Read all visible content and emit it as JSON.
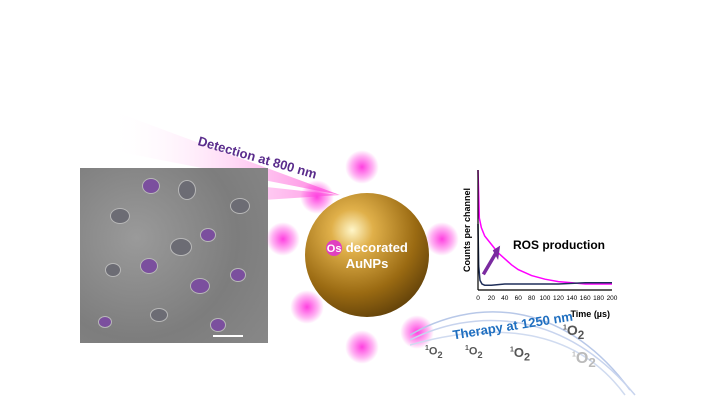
{
  "labels": {
    "detection": "Detection at 800 nm",
    "therapy": "Therapy at 1250 nm",
    "sphere_os": "Os",
    "sphere_rest1": "decorated",
    "sphere_rest2": "AuNPs",
    "ros": "ROS production",
    "singlet_oxygen": "O",
    "singlet_oxygen_sup": "1",
    "singlet_oxygen_sub": "2"
  },
  "colors": {
    "magenta": "#ff00ff",
    "navy": "#1f2f5a",
    "gold": "#c8901e",
    "therapy": "#1f6fc0",
    "detection": "#5a2c8c"
  },
  "chart_data": {
    "type": "line",
    "xlabel": "Time (µs)",
    "ylabel": "Counts per channel",
    "xlim": [
      0,
      200
    ],
    "xticks": [
      "0",
      "20",
      "40",
      "60",
      "80",
      "100",
      "120",
      "140",
      "160",
      "180",
      "200"
    ],
    "ylim": [
      0,
      1
    ],
    "series": [
      {
        "color": "#ff00ff",
        "x": [
          0,
          2,
          5,
          10,
          20,
          30,
          40,
          50,
          60,
          80,
          100,
          120,
          140,
          160,
          180,
          200
        ],
        "values": [
          1.0,
          0.6,
          0.52,
          0.45,
          0.38,
          0.31,
          0.26,
          0.21,
          0.17,
          0.12,
          0.09,
          0.07,
          0.06,
          0.05,
          0.05,
          0.05
        ]
      },
      {
        "color": "#1f2f5a",
        "x": [
          0,
          1,
          3,
          6,
          10,
          20,
          40,
          80,
          120,
          160,
          200
        ],
        "values": [
          0.55,
          0.2,
          0.08,
          0.05,
          0.04,
          0.04,
          0.05,
          0.05,
          0.05,
          0.06,
          0.06
        ]
      }
    ]
  }
}
